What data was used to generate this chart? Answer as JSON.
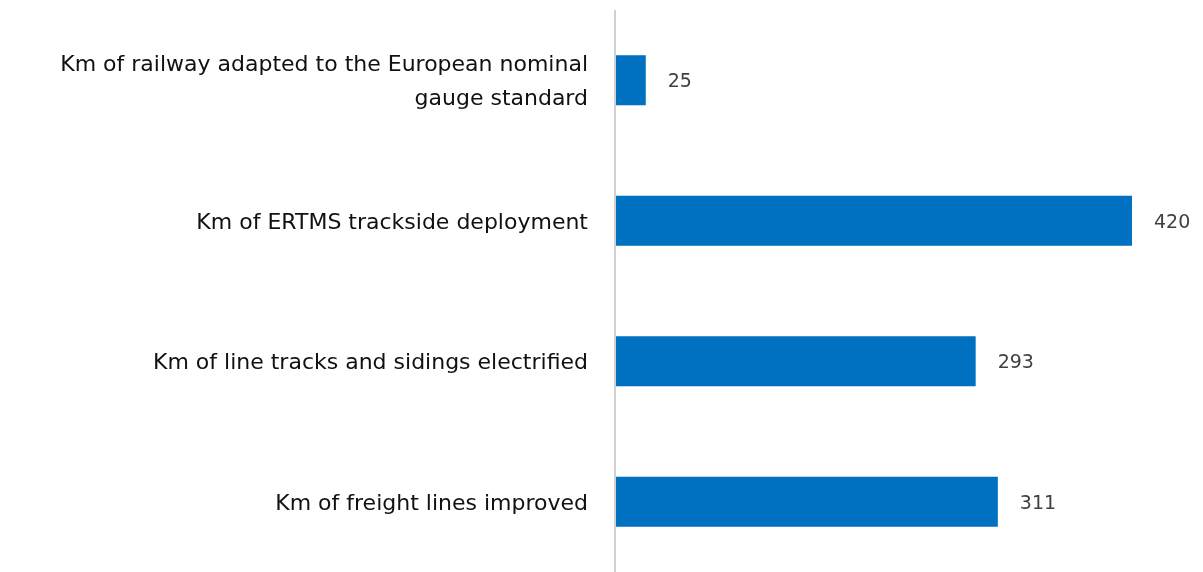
{
  "chart_data": {
    "type": "bar",
    "orientation": "horizontal",
    "categories": [
      "Km of railway adapted to the European nominal gauge standard",
      "Km of ERTMS trackside deployment",
      "Km of line tracks and sidings electrified",
      "Km of freight lines improved"
    ],
    "values": [
      25,
      420,
      293,
      311
    ],
    "color": "#0070c0",
    "xlim": [
      0,
      420
    ],
    "data_labels": true
  }
}
